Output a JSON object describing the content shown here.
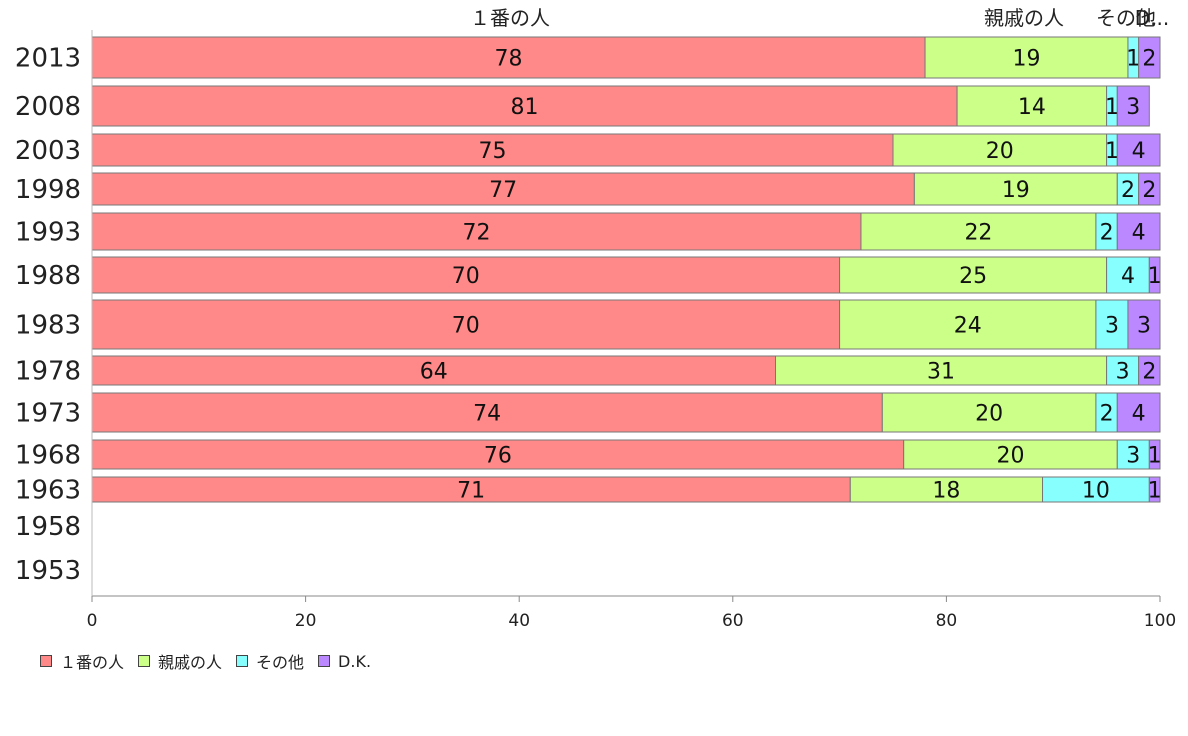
{
  "chart_data": {
    "type": "bar",
    "orientation": "horizontal",
    "stacked": true,
    "categories": [
      "2013",
      "2008",
      "2003",
      "1998",
      "1993",
      "1988",
      "1983",
      "1978",
      "1973",
      "1968",
      "1963",
      "1958",
      "1953"
    ],
    "series": [
      {
        "name": "１番の人",
        "color": "#ff8888",
        "values": [
          78,
          81,
          75,
          77,
          72,
          70,
          70,
          64,
          74,
          76,
          71,
          null,
          null
        ]
      },
      {
        "name": "親戚の人",
        "color": "#ccff88",
        "values": [
          19,
          14,
          20,
          19,
          22,
          25,
          24,
          31,
          20,
          20,
          18,
          null,
          null
        ]
      },
      {
        "name": "その他",
        "color": "#88ffff",
        "values": [
          1,
          1,
          1,
          2,
          2,
          4,
          3,
          3,
          2,
          3,
          10,
          null,
          null
        ]
      },
      {
        "name": "D.K.",
        "color": "#bb88ff",
        "values": [
          2,
          3,
          4,
          2,
          4,
          1,
          3,
          2,
          4,
          1,
          1,
          null,
          null
        ]
      }
    ],
    "top_labels": [
      "１番の人",
      "親戚の人",
      "その他",
      "D..."
    ],
    "xlim": [
      0,
      100
    ],
    "xticks": [
      "0",
      "20",
      "40",
      "60",
      "80",
      "100"
    ],
    "grid": false,
    "legend_position": "bottom-left",
    "data_labels": true
  }
}
